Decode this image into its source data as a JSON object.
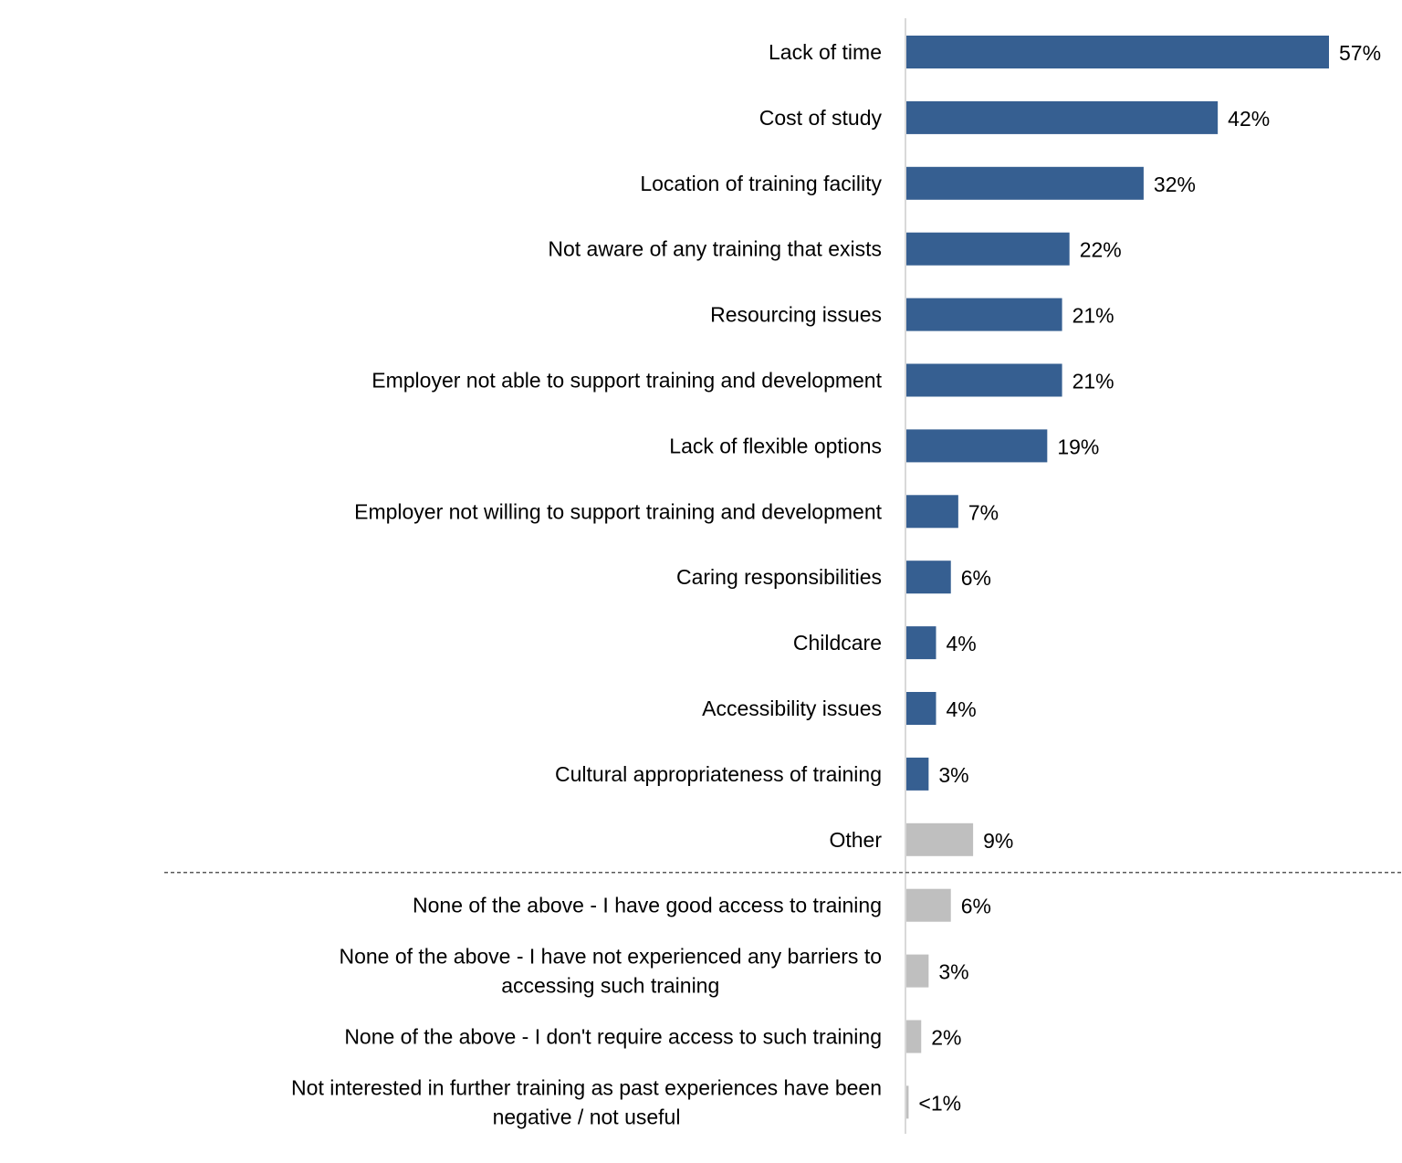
{
  "chart_data": {
    "type": "bar",
    "orientation": "horizontal",
    "title": "",
    "xlabel": "",
    "ylabel": "",
    "xlim": [
      0,
      57
    ],
    "grid": false,
    "legend": "none",
    "colors": {
      "main": "#365F91",
      "other": "#BFBFBF",
      "axis": "#D9D9D9",
      "separator": "#595959"
    },
    "categories": [
      [
        "Lack of time"
      ],
      [
        "Cost of study"
      ],
      [
        "Location of training facility"
      ],
      [
        "Not aware of any training that exists"
      ],
      [
        "Resourcing issues"
      ],
      [
        "Employer not able to support training and development"
      ],
      [
        "Lack of flexible options"
      ],
      [
        "Employer not willing to support training and development"
      ],
      [
        "Caring responsibilities"
      ],
      [
        "Childcare"
      ],
      [
        "Accessibility issues"
      ],
      [
        "Cultural appropriateness of training"
      ],
      [
        "Other"
      ],
      [
        "None of the above - I have good access to training"
      ],
      [
        "None of the above - I have not experienced any barriers to",
        "accessing such training"
      ],
      [
        "None of the above - I don't require access to such training"
      ],
      [
        "Not interested in further training as past experiences have been",
        "negative / not useful"
      ]
    ],
    "values": [
      57,
      42,
      32,
      22,
      21,
      21,
      19,
      7,
      6,
      4,
      4,
      3,
      9,
      6,
      3,
      2,
      0.3
    ],
    "value_labels": [
      "57%",
      "42%",
      "32%",
      "22%",
      "21%",
      "21%",
      "19%",
      "7%",
      "6%",
      "4%",
      "4%",
      "3%",
      "9%",
      "6%",
      "3%",
      "2%",
      "<1%"
    ],
    "series_group": [
      "main",
      "main",
      "main",
      "main",
      "main",
      "main",
      "main",
      "main",
      "main",
      "main",
      "main",
      "main",
      "other",
      "other",
      "other",
      "other",
      "other"
    ],
    "separator_after_index": 12
  }
}
